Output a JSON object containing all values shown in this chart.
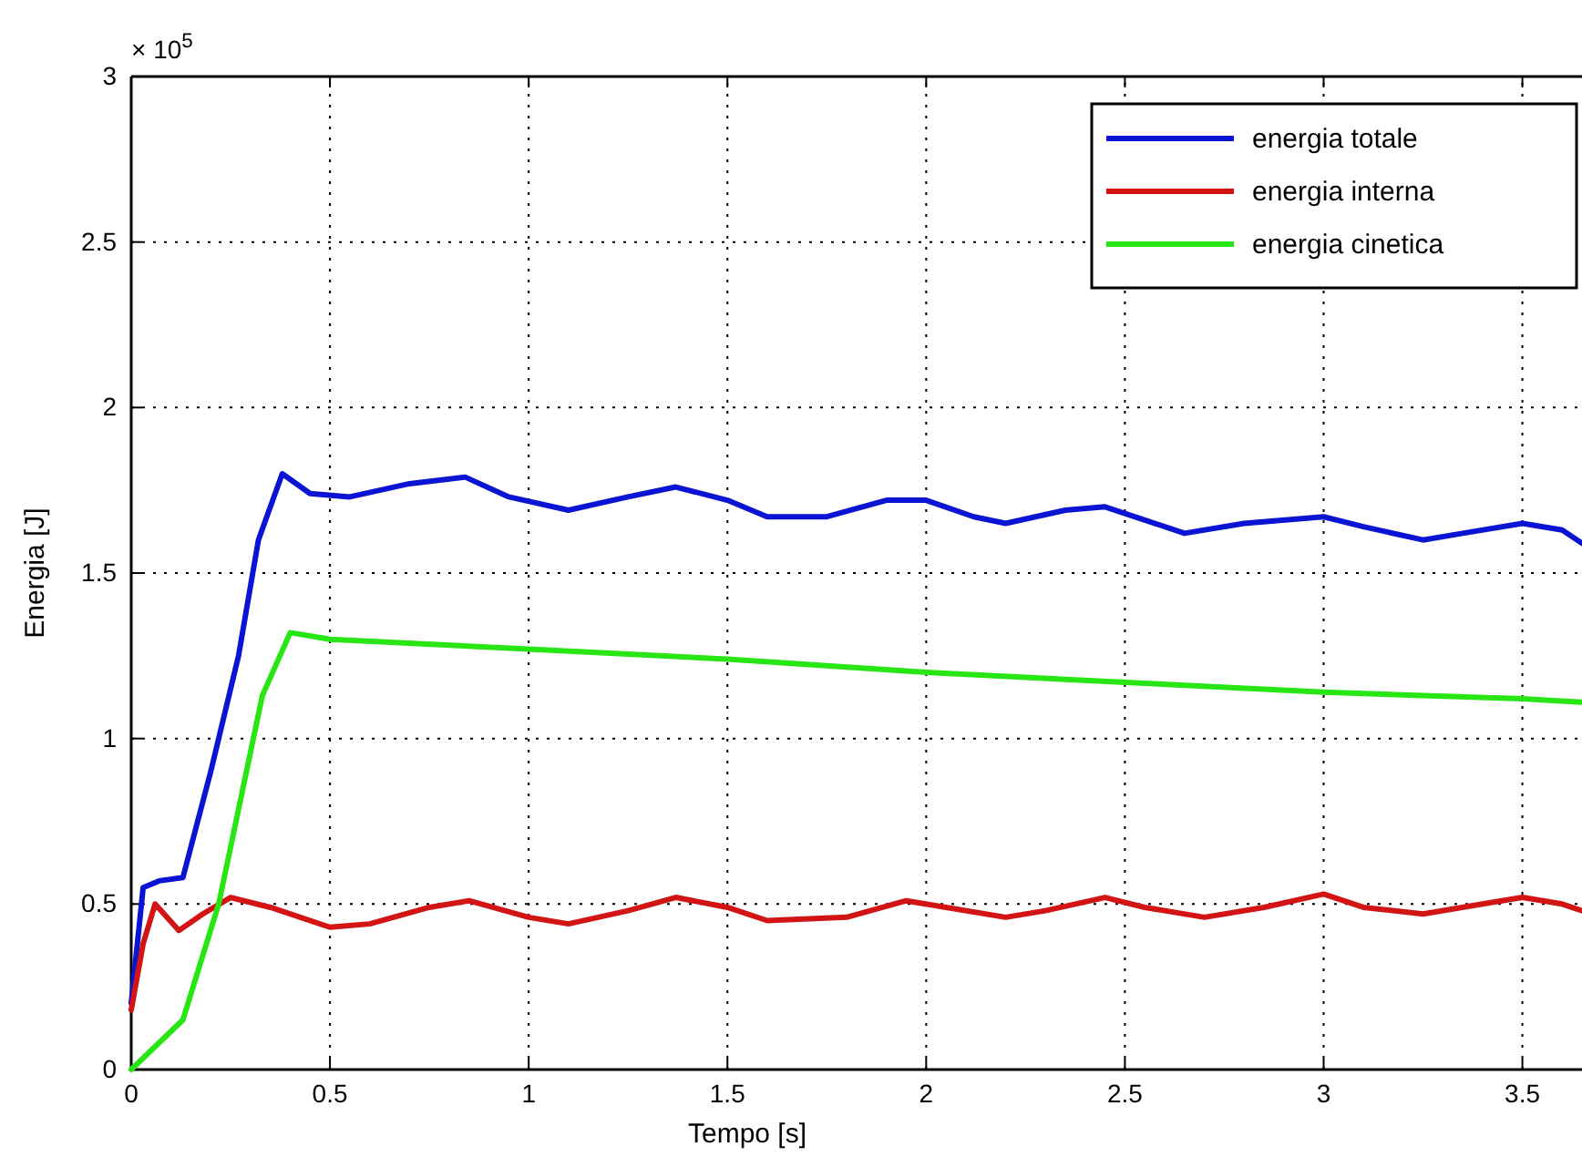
{
  "chart_data": {
    "type": "line",
    "xlabel": "Tempo [s]",
    "ylabel": "Energia [J]",
    "annotations": [
      "× 10$^{5}$"
    ],
    "xlim": [
      0,
      3.65
    ],
    "xticks": [
      0,
      0.5,
      1,
      1.5,
      2,
      2.5,
      3,
      3.5
    ],
    "ylim": [
      0,
      3
    ],
    "yticks": [
      0,
      0.5,
      1,
      1.5,
      2,
      2.5,
      3
    ],
    "grid": true,
    "legend": "top right",
    "line_style": "solid",
    "series": [
      {
        "name": "energia totale",
        "color": "#0a14d2",
        "x": [
          0,
          0.03,
          0.07,
          0.13,
          0.2,
          0.27,
          0.32,
          0.38,
          0.45,
          0.55,
          0.7,
          0.84,
          0.95,
          1.1,
          1.25,
          1.37,
          1.5,
          1.6,
          1.75,
          1.9,
          2,
          2.12,
          2.2,
          2.35,
          2.45,
          2.55,
          2.65,
          2.8,
          3,
          3.1,
          3.25,
          3.35,
          3.5,
          3.6,
          3.65
        ],
        "values": [
          0.2,
          0.55,
          0.57,
          0.58,
          0.9,
          1.25,
          1.6,
          1.8,
          1.74,
          1.73,
          1.77,
          1.79,
          1.73,
          1.69,
          1.73,
          1.76,
          1.72,
          1.67,
          1.67,
          1.72,
          1.72,
          1.67,
          1.65,
          1.69,
          1.7,
          1.66,
          1.62,
          1.65,
          1.67,
          1.64,
          1.6,
          1.62,
          1.65,
          1.63,
          1.59
        ]
      },
      {
        "name": "energia interna",
        "color": "#d21414",
        "x": [
          0,
          0.03,
          0.06,
          0.12,
          0.18,
          0.25,
          0.35,
          0.5,
          0.6,
          0.75,
          0.85,
          1,
          1.1,
          1.25,
          1.37,
          1.5,
          1.6,
          1.8,
          1.95,
          2.05,
          2.2,
          2.3,
          2.45,
          2.55,
          2.7,
          2.85,
          3,
          3.1,
          3.25,
          3.4,
          3.5,
          3.6,
          3.65
        ],
        "values": [
          0.18,
          0.38,
          0.5,
          0.42,
          0.47,
          0.52,
          0.49,
          0.43,
          0.44,
          0.49,
          0.51,
          0.46,
          0.44,
          0.48,
          0.52,
          0.49,
          0.45,
          0.46,
          0.51,
          0.49,
          0.46,
          0.48,
          0.52,
          0.49,
          0.46,
          0.49,
          0.53,
          0.49,
          0.47,
          0.5,
          0.52,
          0.5,
          0.48
        ]
      },
      {
        "name": "energia cinetica",
        "color": "#28e614",
        "x": [
          0,
          0.13,
          0.22,
          0.33,
          0.4,
          0.5,
          1,
          1.5,
          2,
          2.5,
          3,
          3.5,
          3.65
        ],
        "values": [
          0,
          0.15,
          0.5,
          1.13,
          1.32,
          1.3,
          1.27,
          1.24,
          1.2,
          1.17,
          1.14,
          1.12,
          1.11
        ]
      }
    ]
  }
}
